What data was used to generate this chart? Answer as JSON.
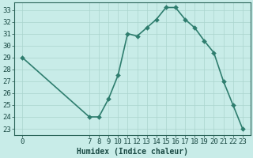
{
  "x": [
    0,
    7,
    8,
    9,
    10,
    11,
    12,
    13,
    14,
    15,
    16,
    17,
    18,
    19,
    20,
    21,
    22,
    23
  ],
  "y": [
    29,
    24,
    24,
    25.5,
    27.5,
    31,
    30.8,
    31.5,
    32.2,
    33.2,
    33.2,
    32.2,
    31.5,
    30.4,
    29.4,
    27,
    25,
    23
  ],
  "line_color": "#2e7d6e",
  "marker_color": "#2e7d6e",
  "bg_color": "#c8ece8",
  "grid_color": "#aad4ce",
  "xlabel": "Humidex (Indice chaleur)",
  "xlabel_fontsize": 7,
  "xticks": [
    0,
    7,
    8,
    9,
    10,
    11,
    12,
    13,
    14,
    15,
    16,
    17,
    18,
    19,
    20,
    21,
    22,
    23
  ],
  "yticks": [
    23,
    24,
    25,
    26,
    27,
    28,
    29,
    30,
    31,
    32,
    33
  ],
  "ylim": [
    22.5,
    33.6
  ],
  "xlim": [
    -0.8,
    23.8
  ],
  "tick_fontsize": 6.5,
  "line_width": 1.2,
  "marker_size": 3
}
